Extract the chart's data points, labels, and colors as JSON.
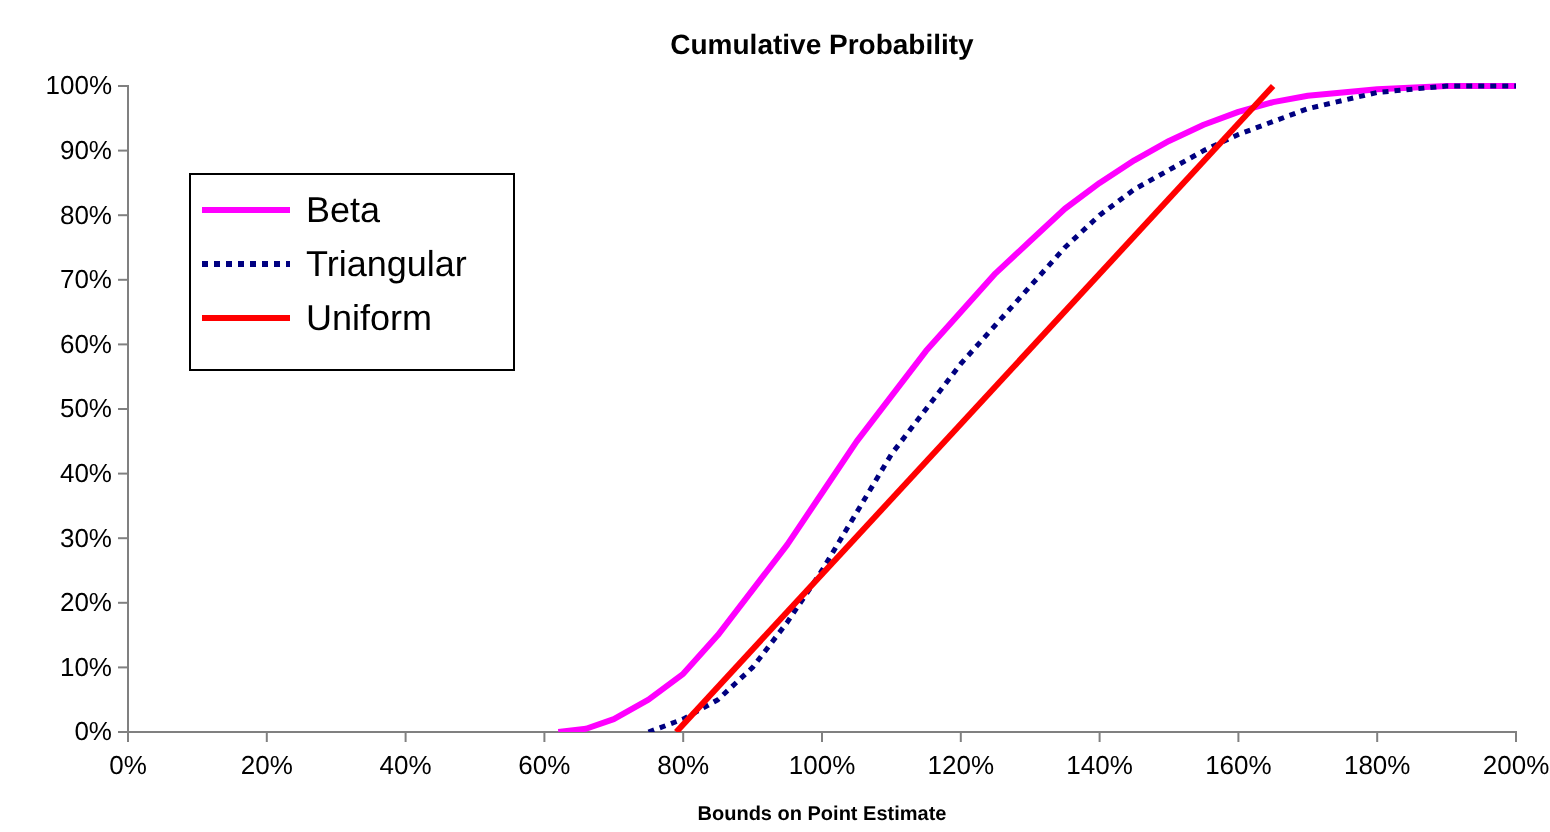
{
  "chart_data": {
    "type": "line",
    "title": "Cumulative Probability",
    "xlabel": "Bounds on Point Estimate",
    "xlim": [
      0,
      200
    ],
    "xticks": [
      {
        "value": 0,
        "label": "0%"
      },
      {
        "value": 20,
        "label": "20%"
      },
      {
        "value": 40,
        "label": "40%"
      },
      {
        "value": 60,
        "label": "60%"
      },
      {
        "value": 80,
        "label": "80%"
      },
      {
        "value": 100,
        "label": "100%"
      },
      {
        "value": 120,
        "label": "120%"
      },
      {
        "value": 140,
        "label": "140%"
      },
      {
        "value": 160,
        "label": "160%"
      },
      {
        "value": 180,
        "label": "180%"
      },
      {
        "value": 200,
        "label": "200%"
      }
    ],
    "ylim": [
      0,
      100
    ],
    "yticks": [
      {
        "value": 0,
        "label": "0%"
      },
      {
        "value": 10,
        "label": "10%"
      },
      {
        "value": 20,
        "label": "20%"
      },
      {
        "value": 30,
        "label": "30%"
      },
      {
        "value": 40,
        "label": "40%"
      },
      {
        "value": 50,
        "label": "50%"
      },
      {
        "value": 60,
        "label": "60%"
      },
      {
        "value": 70,
        "label": "70%"
      },
      {
        "value": 80,
        "label": "80%"
      },
      {
        "value": 90,
        "label": "90%"
      },
      {
        "value": 100,
        "label": "100%"
      }
    ],
    "grid": false,
    "legend": "top left",
    "marker": "none",
    "series": [
      {
        "name": "Beta",
        "color": "#ff00ff",
        "line_style": "solid",
        "x": [
          62,
          66,
          70,
          75,
          80,
          85,
          90,
          95,
          100,
          105,
          110,
          115,
          120,
          125,
          130,
          135,
          140,
          145,
          150,
          155,
          160,
          165,
          170,
          180,
          190,
          200
        ],
        "values": [
          0,
          0.5,
          2,
          5,
          9,
          15,
          22,
          29,
          37,
          45,
          52,
          59,
          65,
          71,
          76,
          81,
          85,
          88.5,
          91.5,
          94,
          96,
          97.5,
          98.5,
          99.5,
          100,
          100
        ]
      },
      {
        "name": "Triangular",
        "color": "#000080",
        "line_style": "dotted",
        "x": [
          75,
          80,
          85,
          90,
          95,
          100,
          105,
          110,
          115,
          120,
          125,
          130,
          135,
          140,
          145,
          150,
          155,
          160,
          165,
          170,
          180,
          190,
          200
        ],
        "values": [
          0,
          2,
          5,
          10,
          17,
          25,
          34,
          43,
          50,
          57,
          63,
          69,
          75,
          80,
          84,
          87,
          90,
          92.5,
          94.5,
          96.5,
          99,
          100,
          100
        ]
      },
      {
        "name": "Uniform",
        "color": "#ff0000",
        "line_style": "solid",
        "x": [
          79,
          165
        ],
        "values": [
          0,
          100
        ]
      }
    ]
  }
}
